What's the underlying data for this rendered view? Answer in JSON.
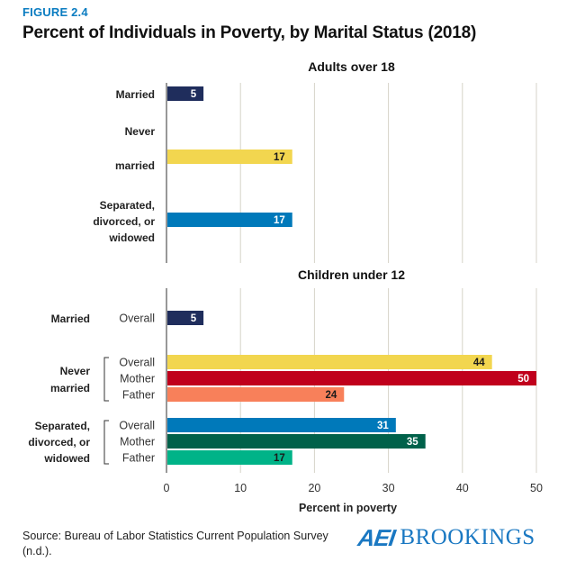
{
  "figure_label": "FIGURE 2.4",
  "title": "Percent of Individuals in Poverty, by Marital Status (2018)",
  "source": "Source: Bureau of Labor Statistics Current Population Survey (n.d.).",
  "logo": {
    "aei": "AEI",
    "brookings": "BROOKINGS"
  },
  "colors": {
    "figure_label": "#0a7cc1",
    "married": "#1f2d5c",
    "never_married_overall": "#f2d64f",
    "never_married_mother": "#c0001c",
    "never_married_father": "#f8805a",
    "separated_overall": "#0079ba",
    "separated_mother": "#00614a",
    "separated_father": "#00b388"
  },
  "chart_data": {
    "type": "bar",
    "orientation": "horizontal",
    "title": "Percent of Individuals in Poverty, by Marital Status (2018)",
    "xlabel": "Percent in poverty",
    "ylabel": "",
    "xlim": [
      0,
      50
    ],
    "xticks": [
      0,
      10,
      20,
      30,
      40,
      50
    ],
    "grid": true,
    "legend": "none",
    "panels": [
      {
        "title": "Adults over 18",
        "groups": [
          {
            "label": "Married",
            "bars": [
              {
                "sub": "",
                "value": 5,
                "color": "#1f2d5c",
                "text_color": "#ffffff"
              }
            ]
          },
          {
            "label": "Never married",
            "bars": [
              {
                "sub": "",
                "value": 17,
                "color": "#f2d64f",
                "text_color": "#1a1a1a"
              }
            ]
          },
          {
            "label": "Separated, divorced, or widowed",
            "bars": [
              {
                "sub": "",
                "value": 17,
                "color": "#0079ba",
                "text_color": "#ffffff"
              }
            ]
          }
        ]
      },
      {
        "title": "Children under 12",
        "groups": [
          {
            "label": "Married",
            "bars": [
              {
                "sub": "Overall",
                "value": 5,
                "color": "#1f2d5c",
                "text_color": "#ffffff"
              }
            ]
          },
          {
            "label": "Never married",
            "bars": [
              {
                "sub": "Overall",
                "value": 44,
                "color": "#f2d64f",
                "text_color": "#1a1a1a"
              },
              {
                "sub": "Mother",
                "value": 50,
                "color": "#c0001c",
                "text_color": "#ffffff"
              },
              {
                "sub": "Father",
                "value": 24,
                "color": "#f8805a",
                "text_color": "#1a1a1a"
              }
            ]
          },
          {
            "label": "Separated, divorced, or widowed",
            "bars": [
              {
                "sub": "Overall",
                "value": 31,
                "color": "#0079ba",
                "text_color": "#ffffff"
              },
              {
                "sub": "Mother",
                "value": 35,
                "color": "#00614a",
                "text_color": "#ffffff"
              },
              {
                "sub": "Father",
                "value": 17,
                "color": "#00b388",
                "text_color": "#1a1a1a"
              }
            ]
          }
        ]
      }
    ]
  }
}
